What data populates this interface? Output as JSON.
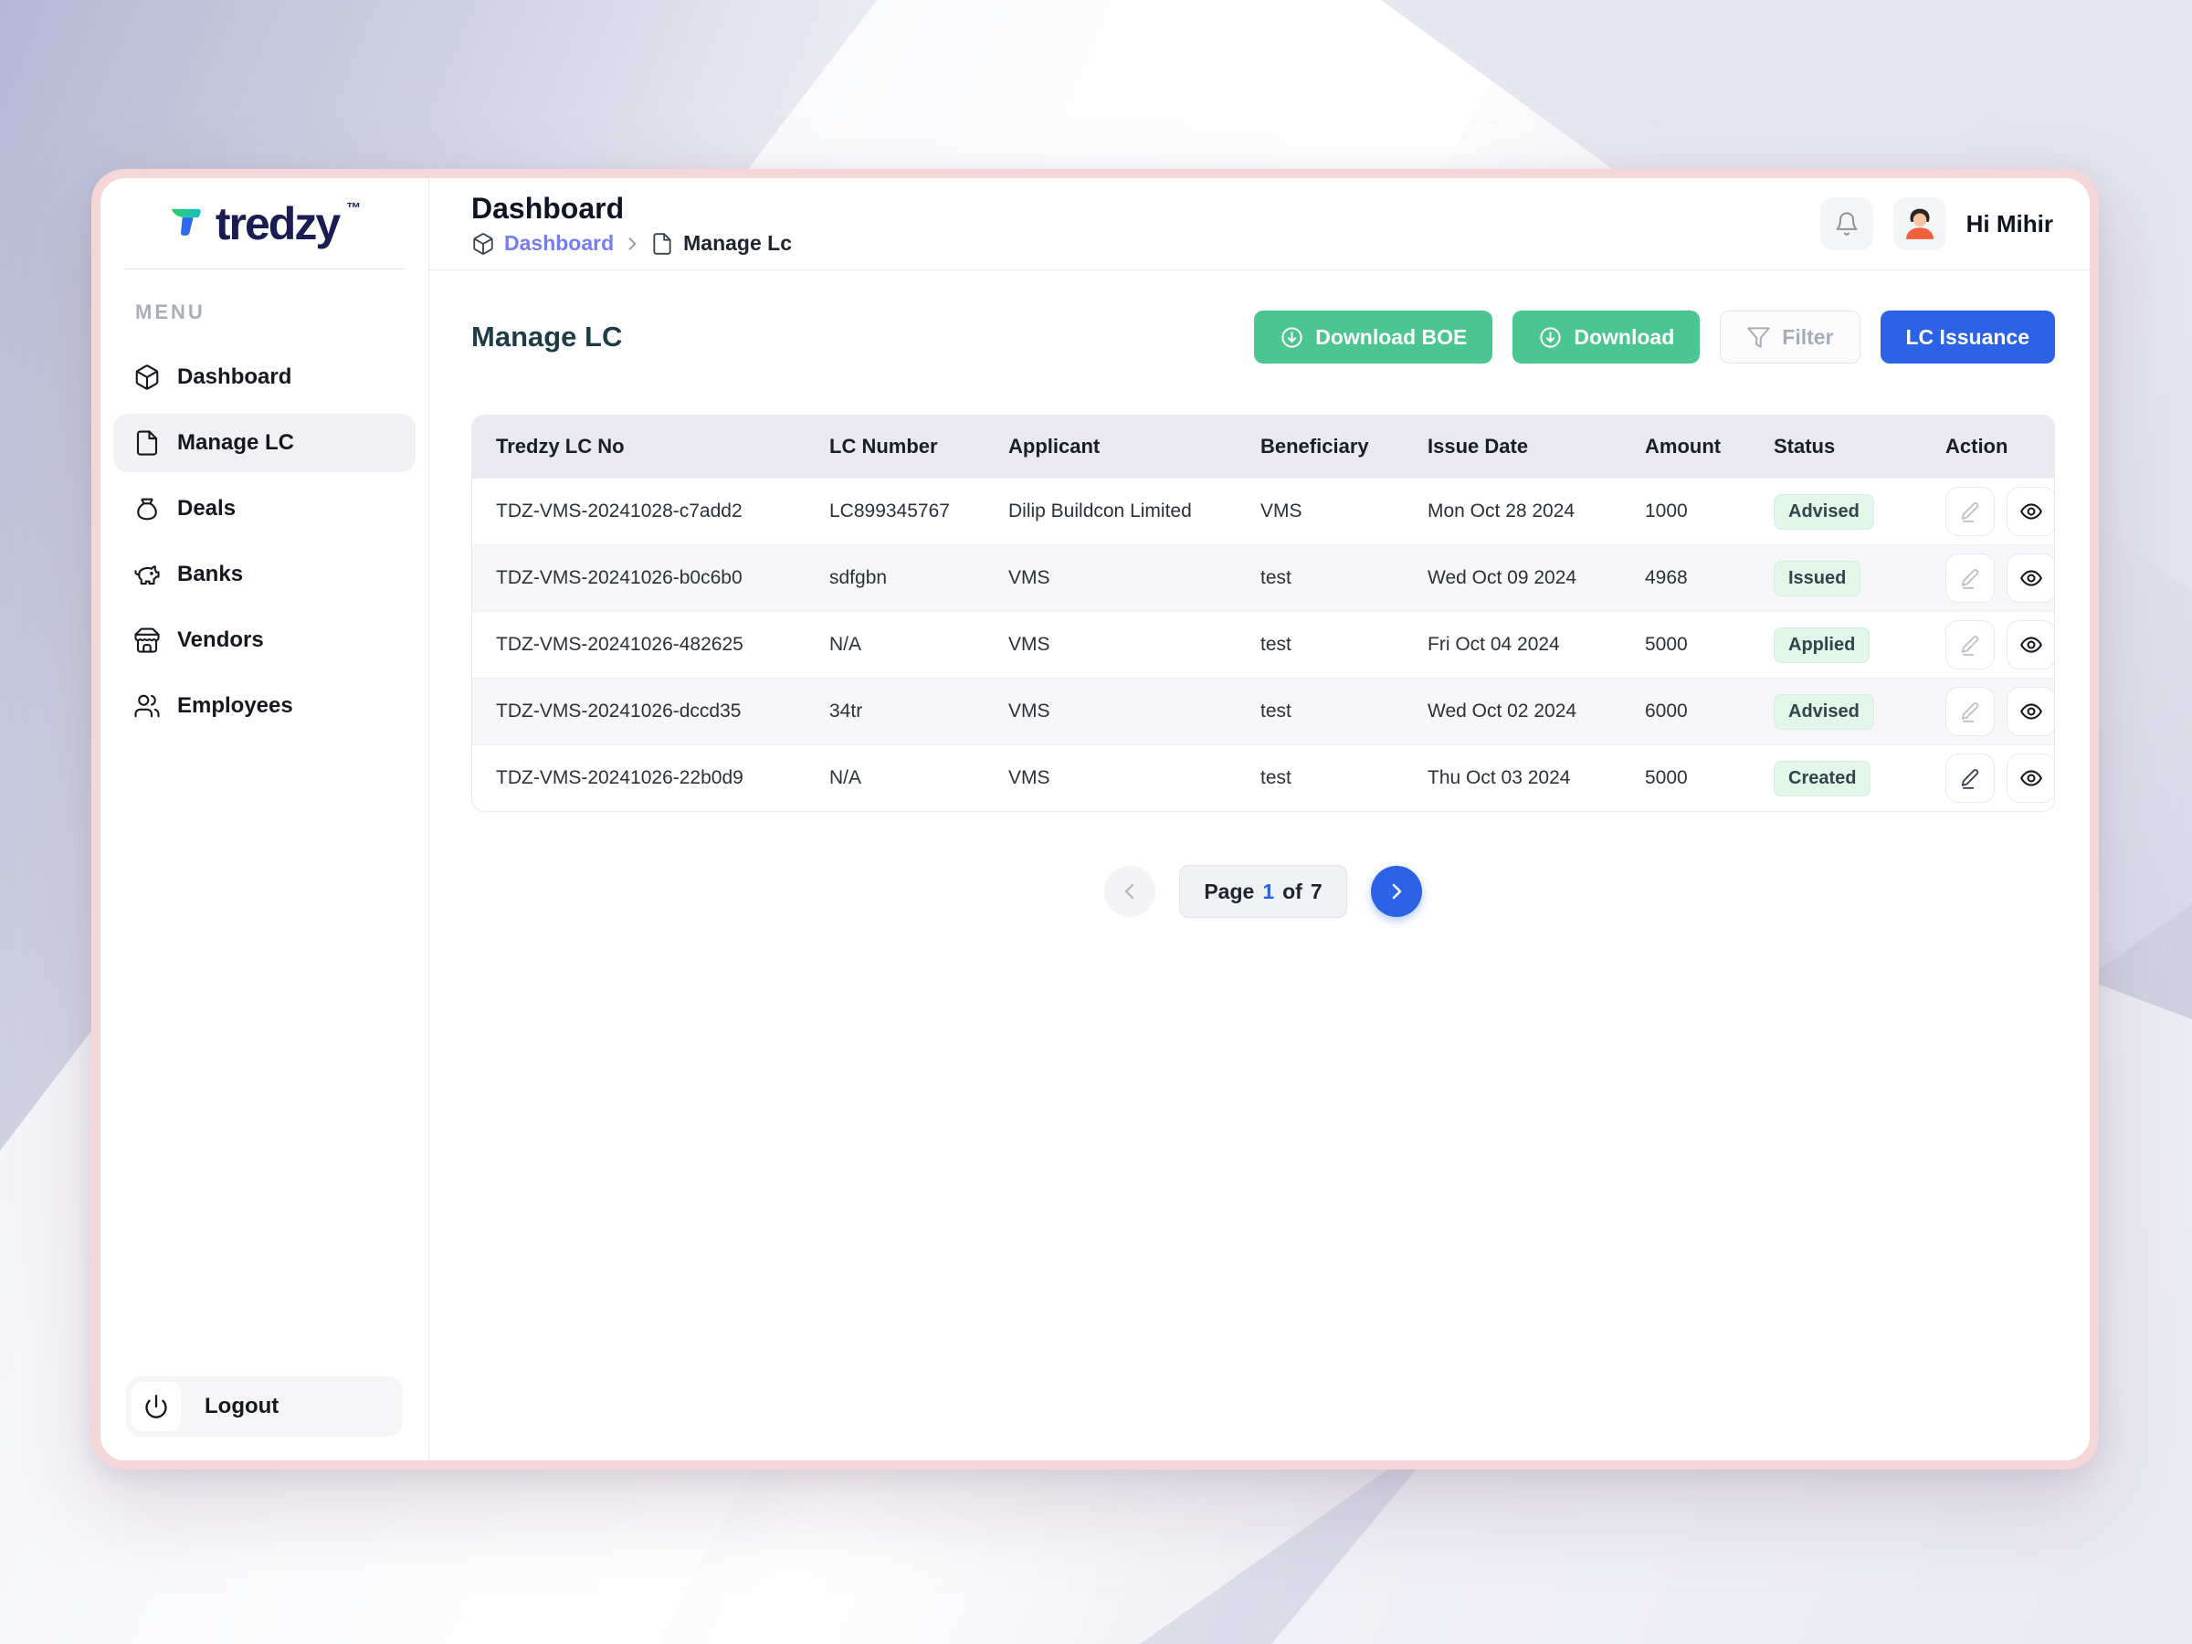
{
  "brand": {
    "name": "tredzy",
    "tm": "™"
  },
  "sidebar": {
    "menu_label": "MENU",
    "items": [
      {
        "label": "Dashboard",
        "icon": "cube-icon",
        "active": false
      },
      {
        "label": "Manage LC",
        "icon": "file-icon",
        "active": true
      },
      {
        "label": "Deals",
        "icon": "money-bag-icon",
        "active": false
      },
      {
        "label": "Banks",
        "icon": "piggy-bank-icon",
        "active": false
      },
      {
        "label": "Vendors",
        "icon": "store-icon",
        "active": false
      },
      {
        "label": "Employees",
        "icon": "users-icon",
        "active": false
      }
    ],
    "logout_label": "Logout"
  },
  "header": {
    "title": "Dashboard",
    "breadcrumb": [
      {
        "label": "Dashboard",
        "icon": "cube-icon",
        "link": true
      },
      {
        "label": "Manage Lc",
        "icon": "file-icon",
        "link": false
      }
    ],
    "greeting": "Hi Mihir"
  },
  "toolbar": {
    "heading": "Manage LC",
    "download_boe_label": "Download BOE",
    "download_label": "Download",
    "filter_label": "Filter",
    "lc_issuance_label": "LC Issuance"
  },
  "table": {
    "columns": [
      "Tredzy LC No",
      "LC Number",
      "Applicant",
      "Beneficiary",
      "Issue Date",
      "Amount",
      "Status",
      "Action"
    ],
    "rows": [
      {
        "tredzy_lc_no": "TDZ-VMS-20241028-c7add2",
        "lc_number": "LC899345767",
        "applicant": "Dilip Buildcon Limited",
        "beneficiary": "VMS",
        "issue_date": "Mon Oct 28 2024",
        "amount": "1000",
        "status": "Advised",
        "edit_enabled": false
      },
      {
        "tredzy_lc_no": "TDZ-VMS-20241026-b0c6b0",
        "lc_number": "sdfgbn",
        "applicant": "VMS",
        "beneficiary": "test",
        "issue_date": "Wed Oct 09 2024",
        "amount": "4968",
        "status": "Issued",
        "edit_enabled": false
      },
      {
        "tredzy_lc_no": "TDZ-VMS-20241026-482625",
        "lc_number": "N/A",
        "applicant": "VMS",
        "beneficiary": "test",
        "issue_date": "Fri Oct 04 2024",
        "amount": "5000",
        "status": "Applied",
        "edit_enabled": false
      },
      {
        "tredzy_lc_no": "TDZ-VMS-20241026-dccd35",
        "lc_number": "34tr",
        "applicant": "VMS",
        "beneficiary": "test",
        "issue_date": "Wed Oct 02 2024",
        "amount": "6000",
        "status": "Advised",
        "edit_enabled": false
      },
      {
        "tredzy_lc_no": "TDZ-VMS-20241026-22b0d9",
        "lc_number": "N/A",
        "applicant": "VMS",
        "beneficiary": "test",
        "issue_date": "Thu Oct 03 2024",
        "amount": "5000",
        "status": "Created",
        "edit_enabled": true
      }
    ]
  },
  "pagination": {
    "prefix": "Page",
    "current": "1",
    "middle": "of",
    "total": "7"
  },
  "colors": {
    "accent_green": "#4cc690",
    "accent_blue": "#2c63e6",
    "badge_bg": "#e2f6ea",
    "badge_text": "#32454b",
    "breadcrumb_link": "#767df0",
    "frame_pink": "#f5d7da",
    "table_header_bg": "#e9e9ef"
  }
}
